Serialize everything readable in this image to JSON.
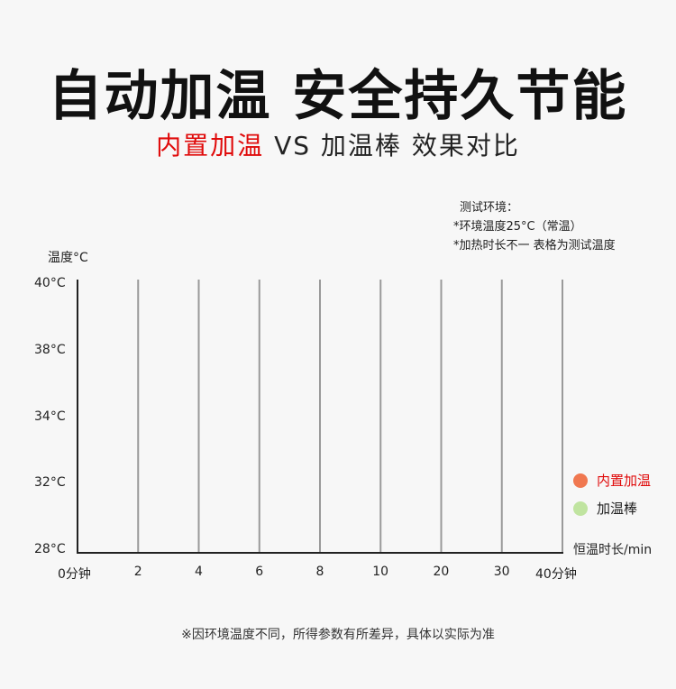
{
  "title": "自动加温 安全持久节能",
  "subtitle": {
    "part1": "内置加温",
    "part2": " VS 加温棒 效果对比"
  },
  "notes": [
    "测试环境：",
    "*环境温度25°C（常温）",
    "*加热时长不一 表格为测试温度"
  ],
  "footnote": "※因环境温度不同，所得参数有所差异，具体以实际为准",
  "chart_data": {
    "type": "line",
    "ylabel": "温度°C",
    "xlabel": "恒温时长/min",
    "x_ticks": [
      "0分钟",
      "2",
      "4",
      "6",
      "8",
      "10",
      "20",
      "30",
      "40分钟"
    ],
    "y_ticks": [
      "28°C",
      "32°C",
      "34°C",
      "38°C",
      "40°C"
    ],
    "grid": "vertical",
    "legend_position": "right",
    "series": [
      {
        "name": "内置加温",
        "color": "#f07850",
        "label_color": "#e00a0a",
        "values": []
      },
      {
        "name": "加温棒",
        "color": "#c0e4a0",
        "label_color": "#222222",
        "values": []
      }
    ]
  }
}
